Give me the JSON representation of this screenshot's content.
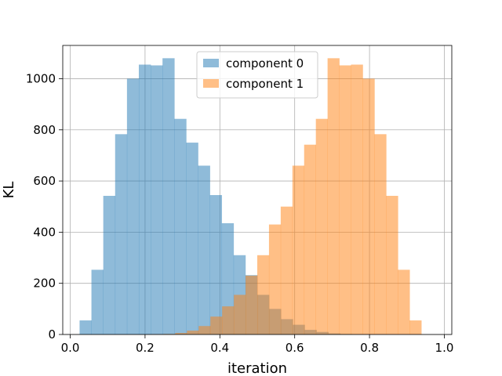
{
  "chart_data": {
    "type": "histogram",
    "title": "",
    "xlabel": "iteration",
    "ylabel": "KL",
    "xlim": [
      -0.02,
      1.02
    ],
    "ylim": [
      0,
      1130
    ],
    "x_ticks": [
      0.0,
      0.2,
      0.4,
      0.6,
      0.8,
      1.0
    ],
    "x_tick_labels": [
      "0.0",
      "0.2",
      "0.4",
      "0.6",
      "0.8",
      "1.0"
    ],
    "y_ticks": [
      0,
      200,
      400,
      600,
      800,
      1000
    ],
    "y_tick_labels": [
      "0",
      "200",
      "400",
      "600",
      "800",
      "1000"
    ],
    "grid": true,
    "legend_position": "top-center",
    "series": [
      {
        "name": "component 0",
        "color": "#1f77b4",
        "alpha": 0.5,
        "bin_start": 0.025,
        "bin_width": 0.03167,
        "values": [
          55,
          253,
          542,
          783,
          1000,
          1055,
          1052,
          1080,
          843,
          750,
          660,
          545,
          435,
          310,
          232,
          155,
          100,
          60,
          38,
          18,
          10,
          4,
          2,
          1,
          0,
          0,
          0,
          0,
          0,
          0
        ]
      },
      {
        "name": "component 1",
        "color": "#ff7f0e",
        "alpha": 0.5,
        "bin_start": 0.03,
        "bin_width": 0.03133,
        "values": [
          0,
          0,
          0,
          0,
          0,
          0,
          1,
          2,
          6,
          15,
          33,
          70,
          110,
          155,
          230,
          310,
          430,
          500,
          660,
          742,
          843,
          1080,
          1052,
          1055,
          1000,
          783,
          542,
          253,
          55,
          0
        ]
      }
    ]
  }
}
